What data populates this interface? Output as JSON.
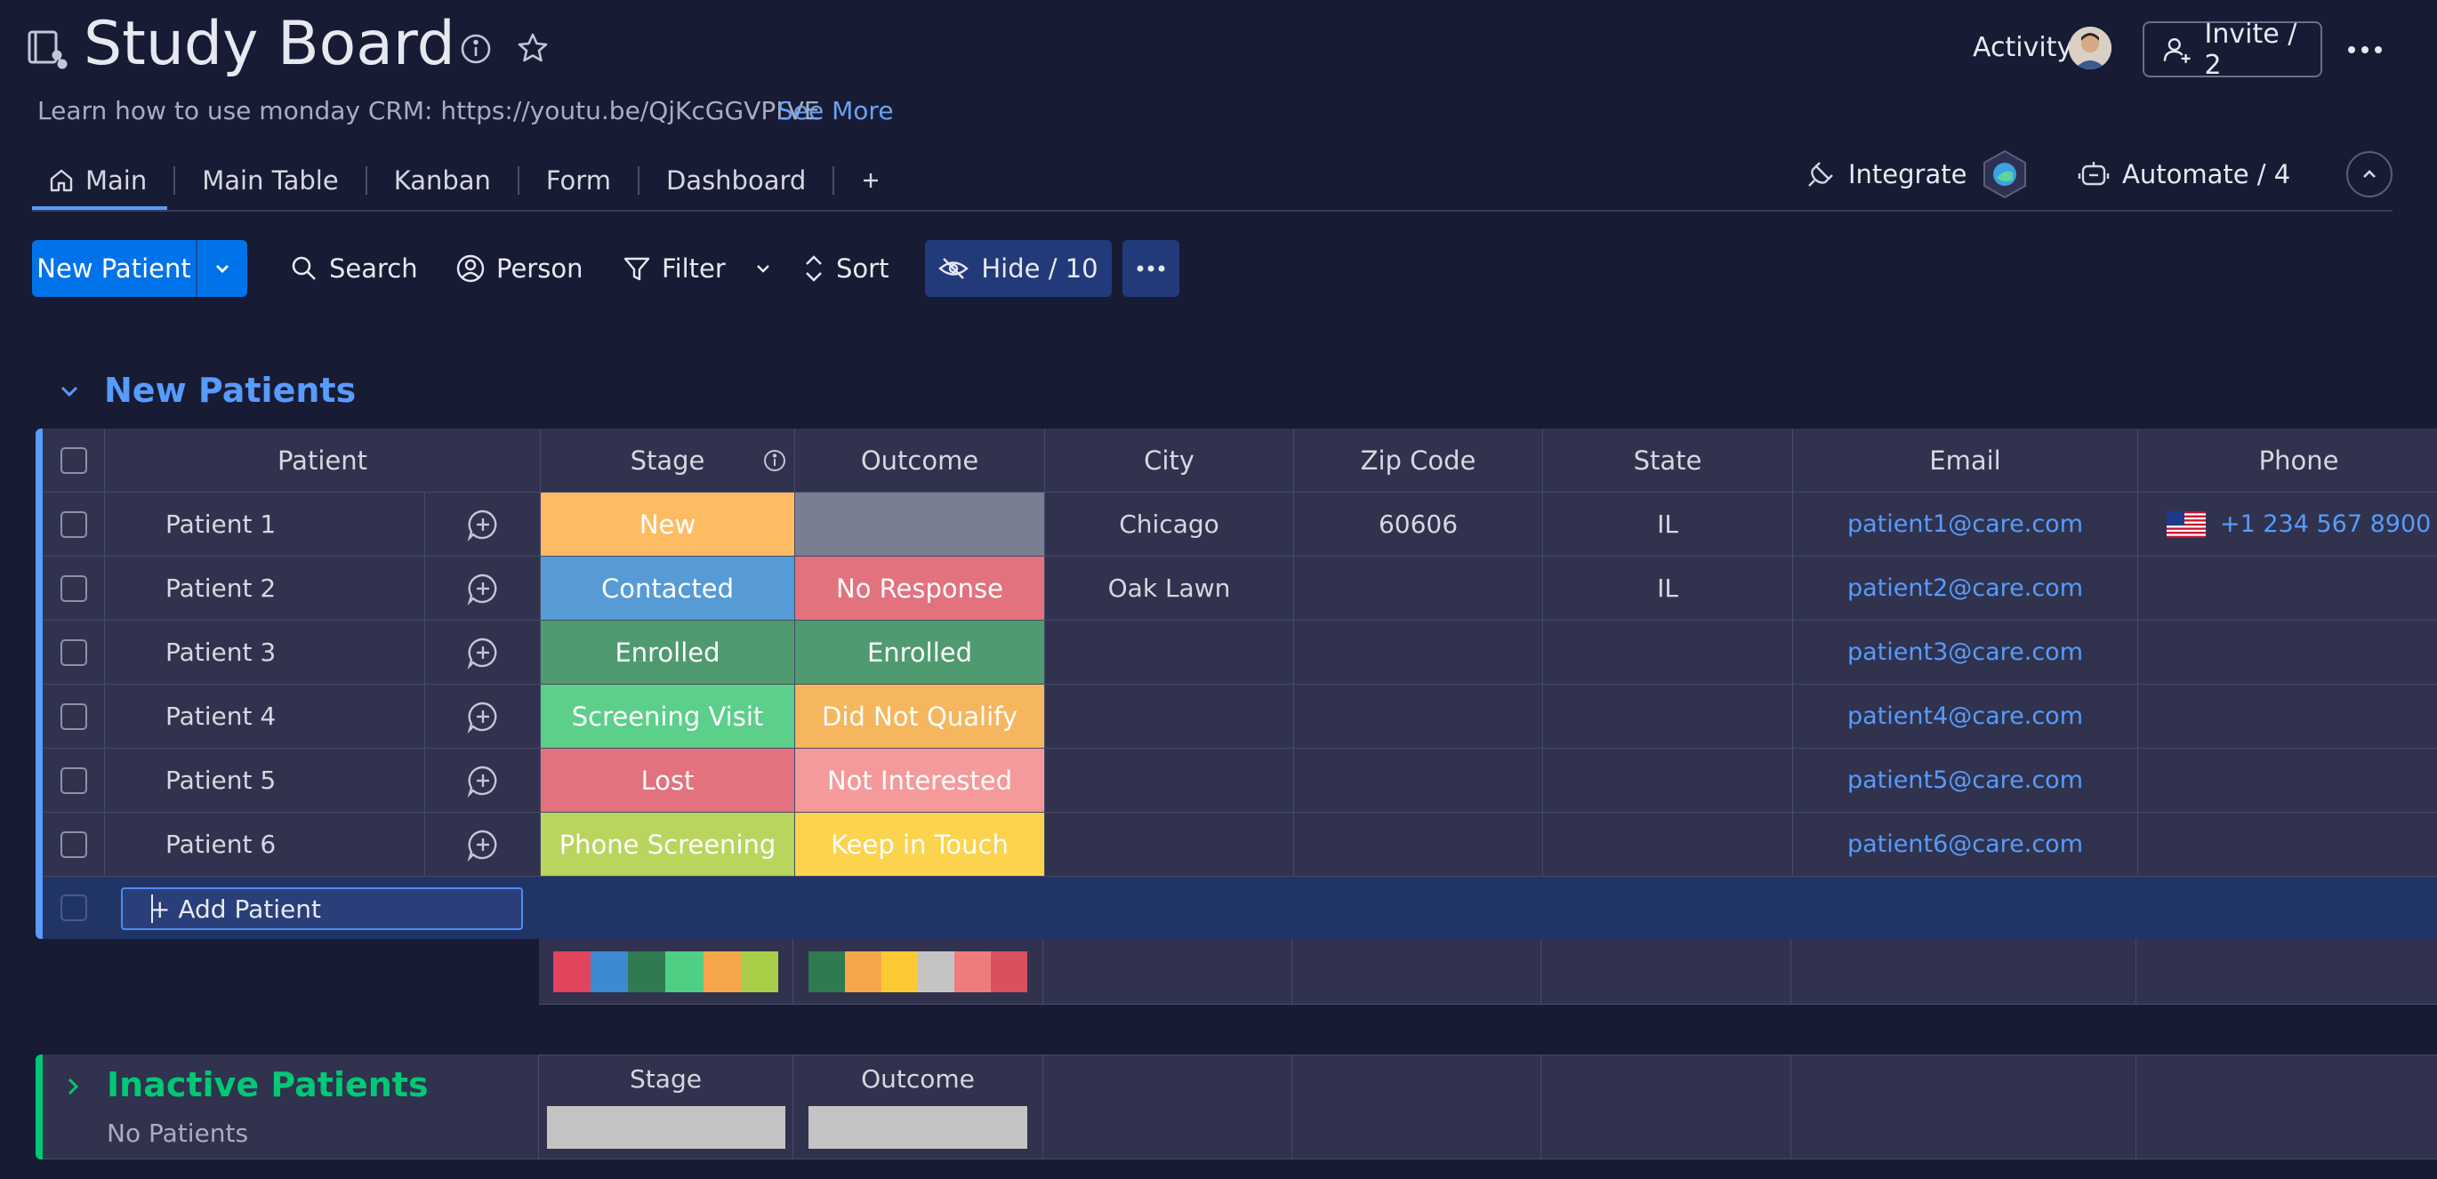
{
  "board": {
    "title": "Study Board",
    "description": "Learn how to use monday CRM: https://youtu.be/QjKcGGVPLVE",
    "see_more": "See More",
    "activity_label": "Activity",
    "invite_label": "Invite / 2"
  },
  "tabs": [
    {
      "label": "Main",
      "active": true
    },
    {
      "label": "Main Table"
    },
    {
      "label": "Kanban"
    },
    {
      "label": "Form"
    },
    {
      "label": "Dashboard"
    }
  ],
  "integrate_label": "Integrate",
  "automate_label": "Automate / 4",
  "toolbar": {
    "new_label": "New Patient",
    "search_label": "Search",
    "person_label": "Person",
    "filter_label": "Filter",
    "sort_label": "Sort",
    "hide_label": "Hide / 10"
  },
  "group": {
    "title": "New Patients",
    "color": "#579bfc",
    "columns": [
      "Patient",
      "Stage",
      "Outcome",
      "City",
      "Zip Code",
      "State",
      "Email",
      "Phone"
    ],
    "rows": [
      {
        "name": "Patient 1",
        "stage": "New",
        "stage_color": "#fdbc64",
        "outcome": "",
        "outcome_color": "#797e93",
        "city": "Chicago",
        "zip": "60606",
        "state": "IL",
        "email": "patient1@care.com",
        "phone": "+1 234 567 8900"
      },
      {
        "name": "Patient 2",
        "stage": "Contacted",
        "stage_color": "#579bd6",
        "outcome": "No Response",
        "outcome_color": "#e2727e",
        "city": "Oak Lawn",
        "zip": "",
        "state": "IL",
        "email": "patient2@care.com",
        "phone": ""
      },
      {
        "name": "Patient 3",
        "stage": "Enrolled",
        "stage_color": "#4f9a6e",
        "outcome": "Enrolled",
        "outcome_color": "#4f9a6e",
        "city": "",
        "zip": "",
        "state": "",
        "email": "patient3@care.com",
        "phone": ""
      },
      {
        "name": "Patient 4",
        "stage": "Screening Visit",
        "stage_color": "#5ccf8a",
        "outcome": "Did Not Qualify",
        "outcome_color": "#f5b65d",
        "city": "",
        "zip": "",
        "state": "",
        "email": "patient4@care.com",
        "phone": ""
      },
      {
        "name": "Patient 5",
        "stage": "Lost",
        "stage_color": "#e2727e",
        "outcome": "Not Interested",
        "outcome_color": "#f49a9a",
        "city": "",
        "zip": "",
        "state": "",
        "email": "patient5@care.com",
        "phone": ""
      },
      {
        "name": "Patient 6",
        "stage": "Phone Screening",
        "stage_color": "#b9d55d",
        "outcome": "Keep in Touch",
        "outcome_color": "#fcd34d",
        "city": "",
        "zip": "",
        "state": "",
        "email": "patient6@care.com",
        "phone": ""
      }
    ],
    "add_label": "+ Add Patient",
    "stage_summary_colors": [
      "#e2445c",
      "#3d8ad1",
      "#2f7a4f",
      "#4fcf83",
      "#f5a64a",
      "#a8cf47"
    ],
    "outcome_summary_colors": [
      "#2f7a4f",
      "#f5a64a",
      "#fcc934",
      "#c4c4c4",
      "#f07b7b",
      "#d9505e"
    ]
  },
  "inactive_group": {
    "title": "Inactive Patients",
    "subtitle": "No Patients",
    "color": "#00c875",
    "columns": [
      "Stage",
      "Outcome"
    ]
  }
}
